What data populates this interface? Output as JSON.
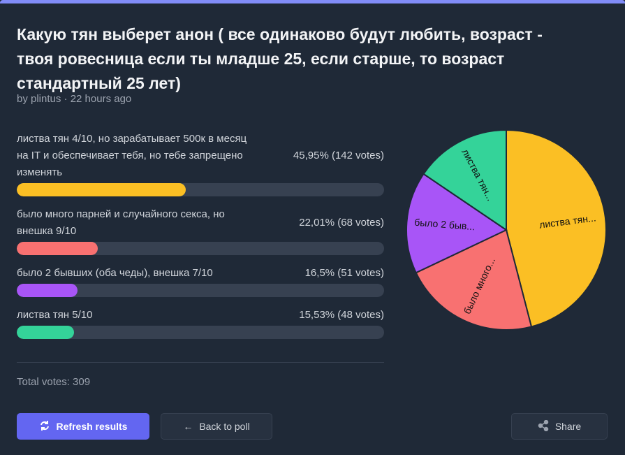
{
  "poll": {
    "title": "Какую тян выберет анон ( все одинаково будут любить, возраст - твоя ровесница если ты младше 25, если старше, то возраст стандартный 25 лет)",
    "meta": "by plintus · 22 hours ago",
    "total": "Total votes: 309"
  },
  "options": [
    {
      "label": "листва тян 4/10, но зарабатывает 500к в месяц на IT и обеспечивает тебя, но тебе запрещено изменять",
      "result": "45,95% (142 votes)",
      "percent": 45.95,
      "votes": 142,
      "color": "#fbbf24",
      "pie_label": "листва тян..."
    },
    {
      "label": "было много парней и случайного секса, но внешка 9/10",
      "result": "22,01% (68 votes)",
      "percent": 22.01,
      "votes": 68,
      "color": "#f87171",
      "pie_label": "было много..."
    },
    {
      "label": "было 2 бывших (оба чеды), внешка 7/10",
      "result": "16,5% (51 votes)",
      "percent": 16.5,
      "votes": 51,
      "color": "#a855f7",
      "pie_label": "было 2 быв..."
    },
    {
      "label": "листва тян 5/10",
      "result": "15,53% (48 votes)",
      "percent": 15.53,
      "votes": 48,
      "color": "#34d399",
      "pie_label": "листва тян..."
    }
  ],
  "buttons": {
    "refresh": "Refresh results",
    "back": "Back to poll",
    "share": "Share"
  },
  "chart_data": {
    "type": "pie",
    "categories": [
      "листва тян 4/10, но зарабатывает 500к в месяц на IT и обеспечивает тебя, но тебе запрещено изменять",
      "было много парней и случайного секса, но внешка 9/10",
      "было 2 бывших (оба чеды), внешка 7/10",
      "листва тян 5/10"
    ],
    "values": [
      142,
      68,
      51,
      48
    ],
    "labels": [
      "листва тян...",
      "было много...",
      "было 2 быв...",
      "листва тян..."
    ],
    "colors": [
      "#fbbf24",
      "#f87171",
      "#a855f7",
      "#34d399"
    ]
  }
}
